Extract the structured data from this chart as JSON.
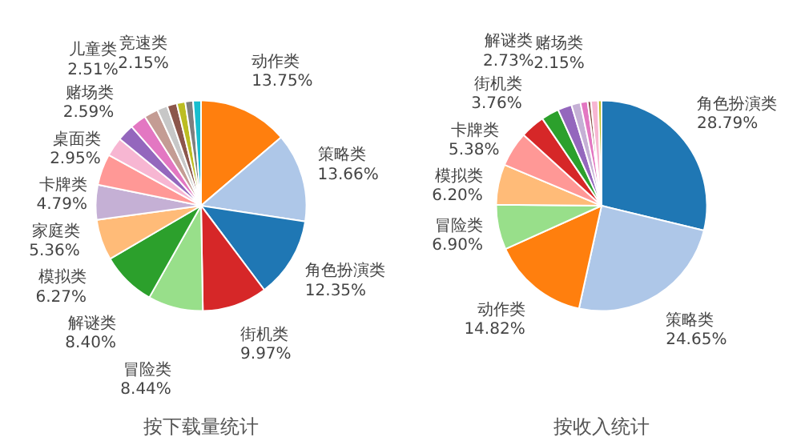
{
  "chart_data": [
    {
      "type": "pie",
      "title": "按下载量统计",
      "categories": [
        "动作类",
        "策略类",
        "角色扮演类",
        "街机类",
        "冒险类",
        "解谜类",
        "模拟类",
        "家庭类",
        "卡牌类",
        "桌面类",
        "赌场类",
        "儿童类",
        "竞速类",
        null,
        null,
        null,
        null,
        null
      ],
      "values": [
        13.75,
        13.66,
        12.35,
        9.97,
        8.44,
        8.4,
        6.27,
        5.36,
        4.79,
        2.95,
        2.59,
        2.51,
        2.15,
        1.6,
        1.5,
        1.3,
        1.2,
        1.21
      ],
      "value_labels": [
        "13.75%",
        "13.66%",
        "12.35%",
        "9.97%",
        "8.44%",
        "8.40%",
        "6.27%",
        "5.36%",
        "4.79%",
        "2.95%",
        "2.59%",
        "2.51%",
        "2.15%",
        null,
        null,
        null,
        null,
        null
      ],
      "colors": [
        "#ff7f0e",
        "#aec7e8",
        "#1f77b4",
        "#d62728",
        "#98df8a",
        "#2ca02c",
        "#ffbb78",
        "#c5b0d5",
        "#ff9896",
        "#f7b6d2",
        "#9467bd",
        "#e377c2",
        "#c49c94",
        "#c7c7c7",
        "#8c564b",
        "#bcbd22",
        "#7f7f7f",
        "#17becf"
      ]
    },
    {
      "type": "pie",
      "title": "按收入统计",
      "categories": [
        "角色扮演类",
        "策略类",
        "动作类",
        "冒险类",
        "模拟类",
        "卡牌类",
        "街机类",
        "解谜类",
        "赌场类",
        null,
        null,
        null,
        null,
        null
      ],
      "values": [
        28.79,
        24.65,
        14.82,
        6.9,
        6.2,
        5.38,
        3.76,
        2.73,
        2.15,
        1.4,
        1.1,
        0.5,
        1.1,
        0.52
      ],
      "value_labels": [
        "28.79%",
        "24.65%",
        "14.82%",
        "6.90%",
        "6.20%",
        "5.38%",
        "3.76%",
        "2.73%",
        "2.15%",
        null,
        null,
        null,
        null,
        null
      ],
      "colors": [
        "#1f77b4",
        "#aec7e8",
        "#ff7f0e",
        "#98df8a",
        "#ffbb78",
        "#ff9896",
        "#d62728",
        "#2ca02c",
        "#9467bd",
        "#c5b0d5",
        "#e377c2",
        "#8c564b",
        "#f7b6d2",
        "#bcbd22"
      ]
    }
  ]
}
